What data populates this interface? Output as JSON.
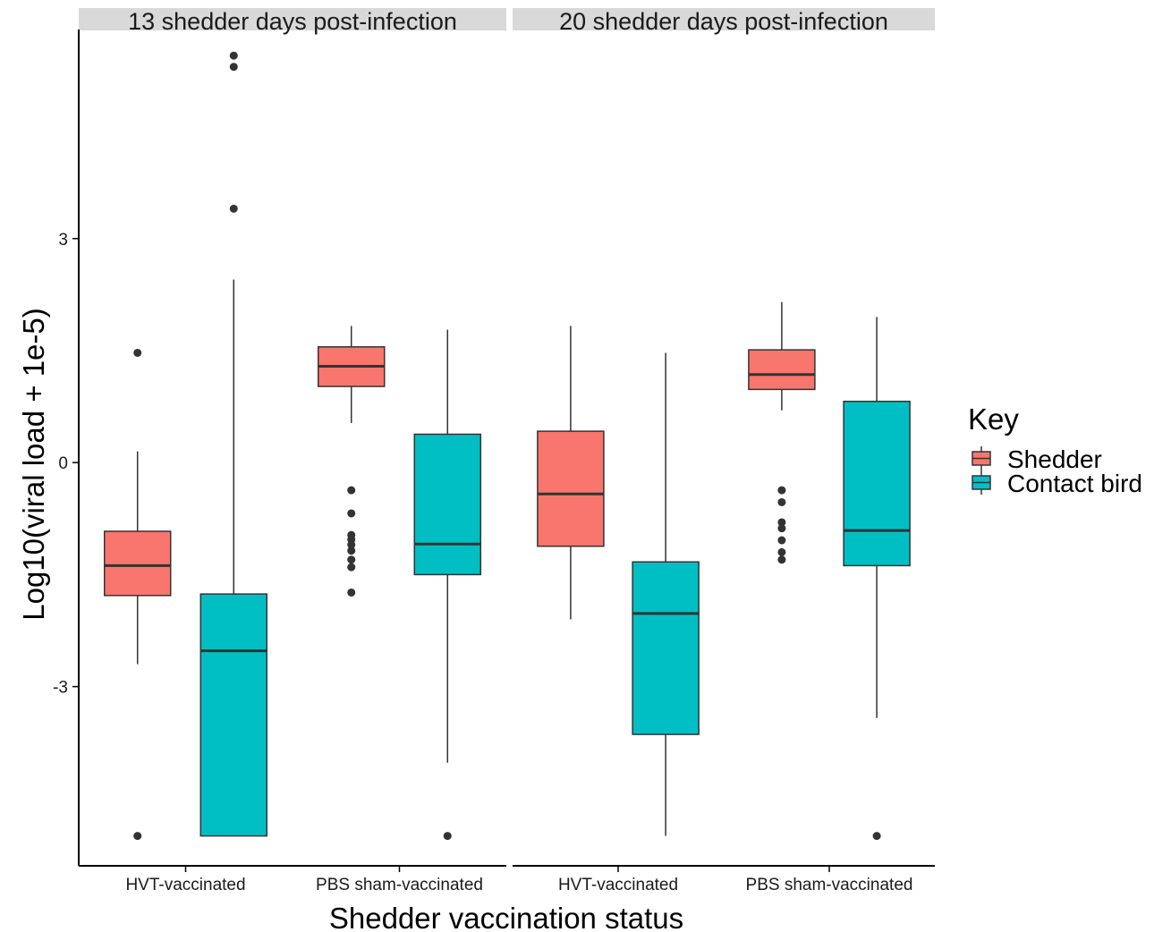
{
  "chart_data": {
    "type": "boxplot",
    "ylabel": "Log10(viral load + 1e-5)",
    "xlabel": "Shedder vaccination status",
    "ylim": [
      -5.4,
      5.8
    ],
    "yticks": [
      3,
      0,
      -3
    ],
    "ytick_labels": [
      "3",
      "0",
      "-3"
    ],
    "categories": [
      "HVT-vaccinated",
      "PBS sham-vaccinated"
    ],
    "legend": {
      "title": "Key",
      "position": "right",
      "entries": [
        {
          "label": "Shedder",
          "color": "#F8766D"
        },
        {
          "label": "Contact bird",
          "color": "#00BFC4"
        }
      ]
    },
    "grid": false,
    "panels": [
      {
        "title": "13 shedder days post-infection",
        "boxes": [
          {
            "category": "HVT-vaccinated",
            "group": "Shedder",
            "min": -2.7,
            "q1": -1.78,
            "median": -1.38,
            "q3": -0.92,
            "max": 0.15,
            "outliers": [
              1.47,
              -5.0
            ]
          },
          {
            "category": "HVT-vaccinated",
            "group": "Contact bird",
            "min": -5.0,
            "q1": -5.0,
            "median": -2.52,
            "q3": -1.76,
            "max": 2.45,
            "outliers": [
              5.45,
              5.3,
              3.4
            ]
          },
          {
            "category": "PBS sham-vaccinated",
            "group": "Shedder",
            "min": 0.53,
            "q1": 1.02,
            "median": 1.29,
            "q3": 1.55,
            "max": 1.83,
            "outliers": [
              -0.37,
              -0.68,
              -0.97,
              -1.03,
              -1.1,
              -1.18,
              -1.3,
              -1.4,
              -1.74
            ]
          },
          {
            "category": "PBS sham-vaccinated",
            "group": "Contact bird",
            "min": -4.02,
            "q1": -1.5,
            "median": -1.09,
            "q3": 0.38,
            "max": 1.78,
            "outliers": [
              -5.0
            ]
          }
        ]
      },
      {
        "title": "20 shedder days post-infection",
        "boxes": [
          {
            "category": "HVT-vaccinated",
            "group": "Shedder",
            "min": -2.1,
            "q1": -1.12,
            "median": -0.42,
            "q3": 0.42,
            "max": 1.83,
            "outliers": []
          },
          {
            "category": "HVT-vaccinated",
            "group": "Contact bird",
            "min": -5.0,
            "q1": -3.64,
            "median": -2.02,
            "q3": -1.33,
            "max": 1.47,
            "outliers": []
          },
          {
            "category": "PBS sham-vaccinated",
            "group": "Shedder",
            "min": 0.7,
            "q1": 0.98,
            "median": 1.18,
            "q3": 1.51,
            "max": 2.15,
            "outliers": [
              -0.37,
              -0.53,
              -0.8,
              -0.88,
              -1.04,
              -1.2,
              -1.3
            ]
          },
          {
            "category": "PBS sham-vaccinated",
            "group": "Contact bird",
            "min": -3.42,
            "q1": -1.38,
            "median": -0.91,
            "q3": 0.82,
            "max": 1.95,
            "outliers": [
              -5.0
            ]
          }
        ]
      }
    ]
  }
}
